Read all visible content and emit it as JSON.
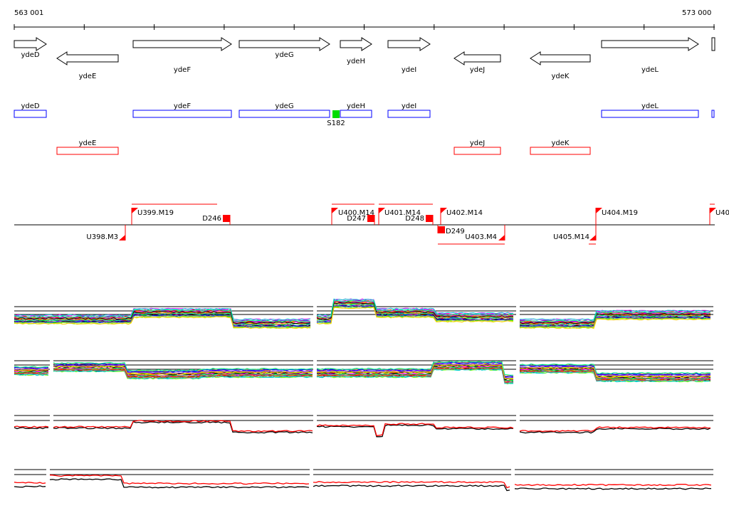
{
  "ruler": {
    "start_label": "563 001",
    "end_label": "573 000"
  },
  "genes": [
    {
      "name": "ydeD",
      "strand": "+"
    },
    {
      "name": "ydeE",
      "strand": "-"
    },
    {
      "name": "ydeF",
      "strand": "+"
    },
    {
      "name": "ydeG",
      "strand": "+"
    },
    {
      "name": "ydeH",
      "strand": "+"
    },
    {
      "name": "ydeI",
      "strand": "+"
    },
    {
      "name": "ydeJ",
      "strand": "-"
    },
    {
      "name": "ydeK",
      "strand": "-"
    },
    {
      "name": "ydeL",
      "strand": "+"
    }
  ],
  "site": {
    "name": "S182",
    "color": "#00dd00"
  },
  "features": [
    {
      "name": "U398.M3"
    },
    {
      "name": "U399.M19"
    },
    {
      "name": "D246"
    },
    {
      "name": "U400.M14"
    },
    {
      "name": "D247"
    },
    {
      "name": "U401.M14"
    },
    {
      "name": "D248"
    },
    {
      "name": "U402.M14"
    },
    {
      "name": "D249"
    },
    {
      "name": "U403.M4"
    },
    {
      "name": "U404.M19"
    },
    {
      "name": "U405.M14"
    },
    {
      "name": "U40"
    }
  ],
  "colors": {
    "plus_box": "#0000ff",
    "minus_box": "#ff0000",
    "feature": "#ff0000",
    "profile_a": "#000000",
    "profile_b": "#ff0000"
  }
}
